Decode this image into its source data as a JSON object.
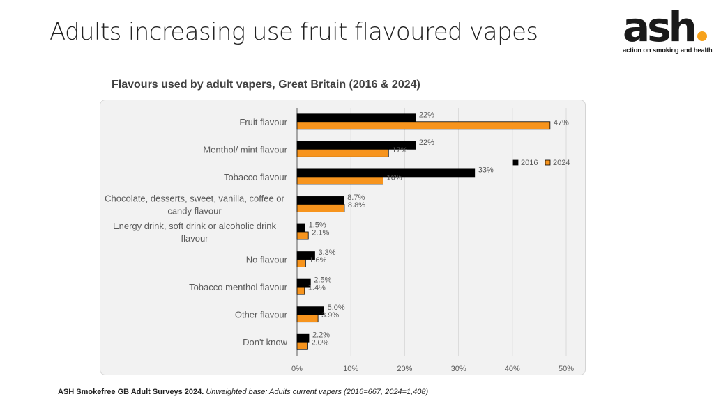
{
  "slide": {
    "title": "Adults increasing use fruit flavoured vapes"
  },
  "logo": {
    "wordmark": "ash",
    "tagline": "action on smoking and health",
    "colors": {
      "text": "#1a1a1a",
      "dot": "#f7a21b"
    }
  },
  "source": {
    "bold": "ASH Smokefree GB Adult Surveys 2024.",
    "italic": "Unweighted base: Adults current vapers (2016=667, 2024=1,408)"
  },
  "chart_data": {
    "type": "bar",
    "orientation": "horizontal",
    "title": "Flavours used by adult vapers, Great Britain (2016 & 2024)",
    "xlabel": "",
    "ylabel": "",
    "xlim": [
      0,
      50
    ],
    "x_ticks": [
      "0%",
      "10%",
      "20%",
      "30%",
      "40%",
      "50%"
    ],
    "x_tick_values": [
      0,
      10,
      20,
      30,
      40,
      50
    ],
    "grid": true,
    "legend_position": "top-right",
    "categories": [
      [
        "Fruit flavour"
      ],
      [
        "Menthol/ mint flavour"
      ],
      [
        "Tobacco flavour"
      ],
      [
        "Chocolate, desserts, sweet, vanilla, coffee or",
        "candy flavour"
      ],
      [
        "Energy drink, soft drink or alcoholic drink",
        "flavour"
      ],
      [
        "No flavour"
      ],
      [
        "Tobacco menthol flavour"
      ],
      [
        "Other flavour"
      ],
      [
        "Don't know"
      ]
    ],
    "series": [
      {
        "name": "2016",
        "color": "#000000",
        "values": [
          22,
          22,
          33,
          8.7,
          1.5,
          3.3,
          2.5,
          5.0,
          2.2
        ],
        "labels": [
          "22%",
          "22%",
          "33%",
          "8.7%",
          "1.5%",
          "3.3%",
          "2.5%",
          "5.0%",
          "2.2%"
        ]
      },
      {
        "name": "2024",
        "color": "#f7941d",
        "values": [
          47,
          17,
          16,
          8.8,
          2.1,
          1.6,
          1.4,
          3.9,
          2.0
        ],
        "labels": [
          "47%",
          "17%",
          "16%",
          "8.8%",
          "2.1%",
          "1.6%",
          "1.4%",
          "3.9%",
          "2.0%"
        ]
      }
    ]
  }
}
